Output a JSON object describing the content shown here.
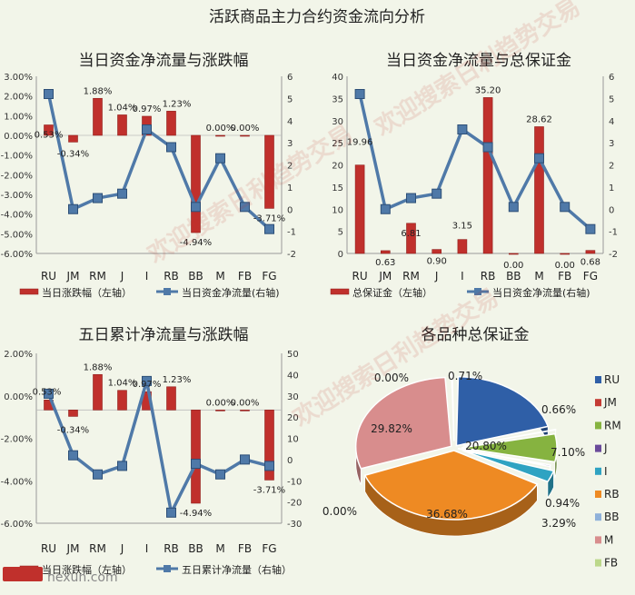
{
  "page_title": "活跃商品主力合约资金流向分析",
  "watermark": "欢迎搜索日利趋势交易",
  "footer_brand": "hexun.com",
  "colors": {
    "bar": "#c0302c",
    "line": "#4f79a8",
    "background": "#f2f5e9"
  },
  "chart_data": [
    {
      "type": "bar+line",
      "title": "当日资金净流量与涨跌幅",
      "categories": [
        "RU",
        "JM",
        "RM",
        "J",
        "I",
        "RB",
        "BB",
        "M",
        "FB",
        "FG"
      ],
      "left_axis": {
        "ticks": [
          "3.00%",
          "2.00%",
          "1.00%",
          "0.00%",
          "-1.00%",
          "-2.00%",
          "-3.00%",
          "-4.00%",
          "-5.00%",
          "-6.00%"
        ],
        "ylim": [
          -6,
          3
        ]
      },
      "right_axis": {
        "ticks": [
          "6",
          "5",
          "4",
          "3",
          "2",
          "1",
          "0",
          "-1",
          "-2"
        ],
        "ylim": [
          -2,
          6
        ]
      },
      "bar_series": {
        "name": "当日涨跌幅（左轴）",
        "values": [
          0.53,
          -0.34,
          1.88,
          1.04,
          0.97,
          1.23,
          -4.94,
          0.0,
          0.0,
          -3.71
        ],
        "labels": [
          "0.53%",
          "-0.34%",
          "1.88%",
          "1.04%",
          "0.97%",
          "1.23%",
          "-4.94%",
          "0.00%",
          "0.00%",
          "-3.71%"
        ]
      },
      "line_series": {
        "name": "当日资金净流量(右轴)",
        "values": [
          5.2,
          0.0,
          0.5,
          0.7,
          3.6,
          2.8,
          0.1,
          2.3,
          0.1,
          -0.9
        ]
      }
    },
    {
      "type": "bar+line",
      "title": "当日资金净流量与总保证金",
      "categories": [
        "RU",
        "JM",
        "RM",
        "J",
        "I",
        "RB",
        "BB",
        "M",
        "FB",
        "FG"
      ],
      "left_axis": {
        "ticks": [
          "40",
          "35",
          "30",
          "25",
          "20",
          "15",
          "10",
          "5",
          "0"
        ],
        "ylim": [
          0,
          40
        ]
      },
      "right_axis": {
        "ticks": [
          "6",
          "5",
          "4",
          "3",
          "2",
          "1",
          "0",
          "-1",
          "-2"
        ],
        "ylim": [
          -2,
          6
        ]
      },
      "bar_series": {
        "name": "总保证金（左轴）",
        "values": [
          19.96,
          0.63,
          6.81,
          0.9,
          3.15,
          35.2,
          0.0,
          28.62,
          0.0,
          0.68
        ],
        "labels": [
          "19.96",
          "0.63",
          "6.81",
          "0.90",
          "3.15",
          "35.20",
          "0.00",
          "28.62",
          "0.00",
          "0.68"
        ]
      },
      "line_series": {
        "name": "当日资金净流量(右轴)",
        "values": [
          5.2,
          0.0,
          0.5,
          0.7,
          3.6,
          2.8,
          0.1,
          2.3,
          0.1,
          -0.9
        ]
      }
    },
    {
      "type": "bar+line",
      "title": "五日累计净流量与涨跌幅",
      "categories": [
        "RU",
        "JM",
        "RM",
        "J",
        "I",
        "RB",
        "BB",
        "M",
        "FB",
        "FG"
      ],
      "left_axis": {
        "ticks": [
          "2.00%",
          "0.00%",
          "-2.00%",
          "-4.00%",
          "-6.00%"
        ],
        "ylim": [
          -6,
          3
        ]
      },
      "right_axis": {
        "ticks": [
          "50",
          "40",
          "30",
          "20",
          "10",
          "0",
          "-10",
          "-20",
          "-30"
        ],
        "ylim": [
          -30,
          50
        ]
      },
      "bar_series": {
        "name": "当日涨跌幅（左轴）",
        "values": [
          0.53,
          -0.34,
          1.88,
          1.04,
          0.97,
          1.23,
          -4.94,
          0.0,
          0.0,
          -3.71
        ],
        "labels": [
          "0.53%",
          "-0.34%",
          "1.88%",
          "1.04%",
          "0.97%",
          "1.23%",
          "-4.94%",
          "0.00%",
          "0.00%",
          "-3.71%"
        ]
      },
      "line_series": {
        "name": "五日累计净流量（右轴）",
        "values": [
          31,
          2,
          -7,
          -3,
          37,
          -25,
          -2,
          -7,
          0,
          -3
        ]
      }
    },
    {
      "type": "pie",
      "title": "各品种总保证金",
      "categories": [
        "RU",
        "JM",
        "RM",
        "J",
        "I",
        "RB",
        "BB",
        "M",
        "FB",
        "FG"
      ],
      "values": [
        20.8,
        0.66,
        7.1,
        0.94,
        3.29,
        36.68,
        0.0,
        29.82,
        0.0,
        0.71
      ],
      "labels": [
        "20.80%",
        "0.66%",
        "7.10%",
        "0.94%",
        "3.29%",
        "36.68%",
        "0.00%",
        "29.82%",
        "0.00%",
        "0.71%"
      ],
      "legend_entries": [
        "RU",
        "JM",
        "RM",
        "J",
        "I",
        "RB",
        "BB",
        "M",
        "FB"
      ],
      "colors": [
        "#2f5fa7",
        "#c43b34",
        "#86b340",
        "#6a4a9a",
        "#2fa3c2",
        "#ee8a23",
        "#8fb1da",
        "#d88d8d",
        "#bcd88a",
        "#b3a6d0"
      ],
      "legend": "right"
    }
  ]
}
